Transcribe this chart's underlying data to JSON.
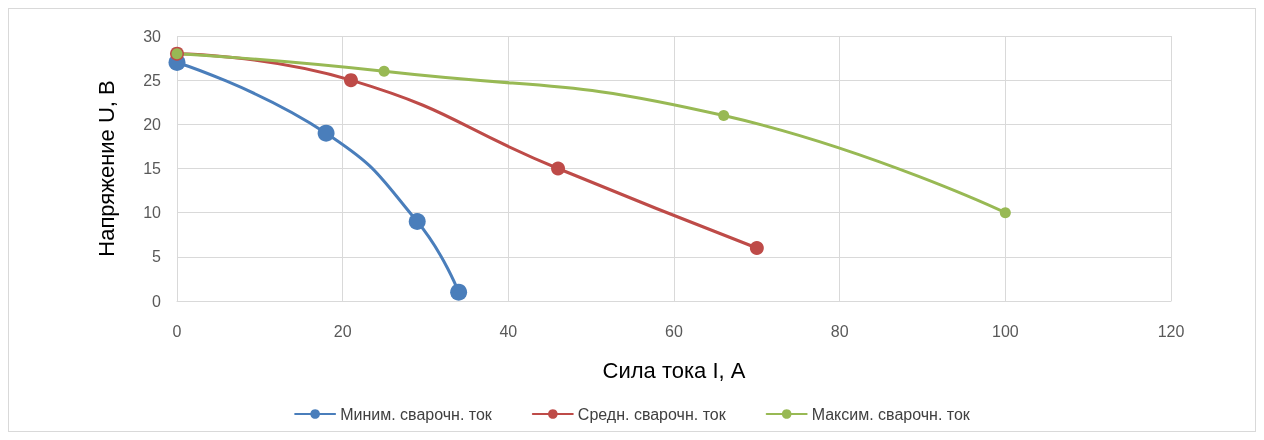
{
  "chart_data": {
    "type": "line",
    "xlabel": "Сила тока I, А",
    "ylabel": "Напряжение U, В",
    "series": [
      {
        "name": "Миним. сварочн. ток",
        "color": "#4a7ebb",
        "x": [
          0,
          18,
          29,
          34
        ],
        "values": [
          27,
          19,
          9,
          1
        ]
      },
      {
        "name": "Средн. сварочн. ток",
        "color": "#be4b48",
        "x": [
          0,
          21,
          46,
          70
        ],
        "values": [
          28,
          25,
          15,
          6
        ]
      },
      {
        "name": "Максим. сварочн. ток",
        "color": "#98b954",
        "x": [
          0,
          25,
          66,
          100
        ],
        "values": [
          28,
          26,
          21,
          10
        ]
      }
    ],
    "xlim": [
      0,
      120
    ],
    "xticks": [
      0,
      20,
      40,
      60,
      80,
      100,
      120
    ],
    "ylim": [
      0,
      30
    ],
    "yticks": [
      0,
      5,
      10,
      15,
      20,
      25,
      30
    ],
    "grid": true,
    "legend": "bottom",
    "marker": "circle",
    "line_style": "solid"
  }
}
